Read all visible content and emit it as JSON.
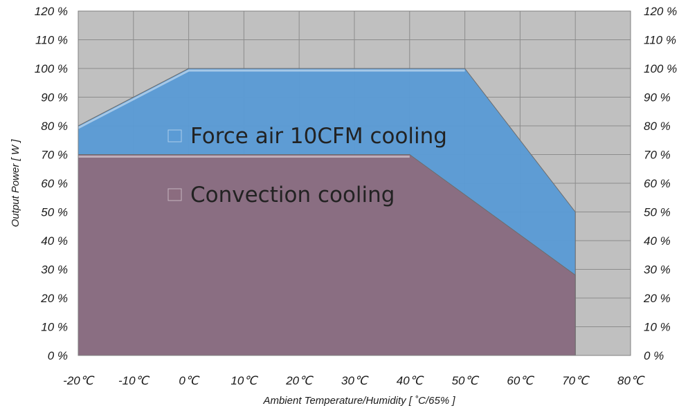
{
  "chart_data": {
    "type": "area",
    "title": "",
    "xlabel": "Ambient Temperature/Humidity [ ˚C/65% ]",
    "ylabel": "Output Power [ W ]",
    "xlim": [
      -20,
      80
    ],
    "ylim": [
      0,
      120
    ],
    "x_ticks": [
      "-20℃",
      "-10℃",
      "0℃",
      "10℃",
      "20℃",
      "30℃",
      "40℃",
      "50℃",
      "60℃",
      "70℃",
      "80℃"
    ],
    "y_ticks": [
      "0 %",
      "10 %",
      "20 %",
      "30 %",
      "40 %",
      "50 %",
      "60 %",
      "70 %",
      "80 %",
      "90 %",
      "100 %",
      "110 %",
      "120 %"
    ],
    "grid": true,
    "secondary_y_axis": true,
    "legend_position": "inside-center-left",
    "series": [
      {
        "name": "Force air 10CFM cooling",
        "color": "#5b9bd5",
        "x": [
          -20,
          0,
          50,
          70
        ],
        "values": [
          80,
          100,
          100,
          50
        ]
      },
      {
        "name": "Convection cooling",
        "color": "#8b6c7f",
        "x": [
          -20,
          40,
          70
        ],
        "values": [
          70,
          70,
          28
        ]
      }
    ]
  }
}
